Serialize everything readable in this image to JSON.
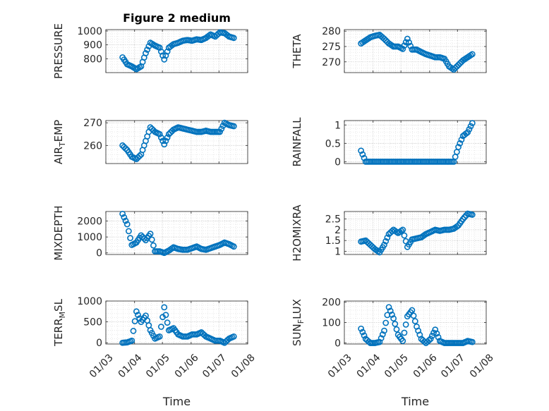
{
  "colors": {
    "marker": "#0072BD",
    "axis": "#262626",
    "grid": "#dcdcdc",
    "background": "#ffffff"
  },
  "chart_data": [
    {
      "type": "scatter",
      "title": "Figure 2 medium",
      "ylabel": "PRESSURE",
      "xlabel": "",
      "xlim": [
        "01/03",
        "01/08"
      ],
      "ylim": [
        700,
        1010
      ],
      "yticks": [
        800,
        900,
        1000
      ],
      "ytick_labels": [
        "800",
        "900",
        "1000"
      ],
      "xticks": [
        "01/03",
        "01/04",
        "01/05",
        "01/06",
        "01/07",
        "01/08"
      ],
      "xtick_labels": [],
      "grid": true,
      "minor_grid": true,
      "x": [
        "2012-03-19",
        "2012-03-24",
        "2012-03-29",
        "2012-04-03",
        "2012-04-08",
        "2012-04-13",
        "2012-04-18",
        "2012-04-23",
        "2012-04-28",
        "2012-05-03",
        "2012-05-08",
        "2012-05-13",
        "2012-05-18",
        "2012-05-23",
        "2012-05-28",
        "2012-06-02",
        "2012-06-07",
        "2012-06-12",
        "2012-06-17",
        "2012-06-22",
        "2012-06-27",
        "2012-07-02",
        "2012-07-07",
        "2012-07-12",
        "2012-07-17"
      ],
      "y": [
        810,
        760,
        745,
        725,
        745,
        840,
        915,
        895,
        880,
        795,
        880,
        905,
        915,
        930,
        935,
        930,
        940,
        935,
        950,
        975,
        960,
        990,
        985,
        960,
        950
      ]
    },
    {
      "type": "scatter",
      "title": "",
      "ylabel": "THETA",
      "xlabel": "",
      "xlim": [
        "01/03",
        "01/08"
      ],
      "ylim": [
        266.5,
        280.5
      ],
      "yticks": [
        270,
        275,
        280
      ],
      "ytick_labels": [
        "270",
        "275",
        "280"
      ],
      "xticks": [
        "01/03",
        "01/04",
        "01/05",
        "01/06",
        "01/07",
        "01/08"
      ],
      "xtick_labels": [],
      "grid": true,
      "minor_grid": true,
      "x": [
        "2012-03-19",
        "2012-03-24",
        "2012-03-29",
        "2012-04-03",
        "2012-04-08",
        "2012-04-13",
        "2012-04-18",
        "2012-04-23",
        "2012-04-28",
        "2012-05-03",
        "2012-05-08",
        "2012-05-13",
        "2012-05-18",
        "2012-05-23",
        "2012-05-28",
        "2012-06-02",
        "2012-06-07",
        "2012-06-12",
        "2012-06-17",
        "2012-06-22",
        "2012-06-27",
        "2012-07-02",
        "2012-07-07",
        "2012-07-12",
        "2012-07-17"
      ],
      "y": [
        276,
        277,
        278,
        278.5,
        278.8,
        277.5,
        276,
        275,
        275,
        274.2,
        277.5,
        274,
        274,
        273.2,
        272.5,
        272,
        271.5,
        271.5,
        271,
        268.5,
        267.5,
        269,
        270.5,
        271.5,
        272.5
      ]
    },
    {
      "type": "scatter",
      "title": "",
      "ylabel": "AIR_TEMP",
      "xlabel": "",
      "xlim": [
        "01/03",
        "01/08"
      ],
      "ylim": [
        252,
        271
      ],
      "yticks": [
        260,
        270
      ],
      "ytick_labels": [
        "260",
        "270"
      ],
      "xticks": [
        "01/03",
        "01/04",
        "01/05",
        "01/06",
        "01/07",
        "01/08"
      ],
      "xtick_labels": [],
      "grid": true,
      "minor_grid": true,
      "x": [
        "2012-03-19",
        "2012-03-24",
        "2012-03-29",
        "2012-04-03",
        "2012-04-08",
        "2012-04-13",
        "2012-04-18",
        "2012-04-23",
        "2012-04-28",
        "2012-05-03",
        "2012-05-08",
        "2012-05-13",
        "2012-05-18",
        "2012-05-23",
        "2012-05-28",
        "2012-06-02",
        "2012-06-07",
        "2012-06-12",
        "2012-06-17",
        "2012-06-22",
        "2012-06-27",
        "2012-07-02",
        "2012-07-07",
        "2012-07-12",
        "2012-07-17"
      ],
      "y": [
        260,
        258,
        255,
        254,
        256,
        262,
        268,
        266,
        265,
        260.5,
        265,
        267,
        268,
        267.5,
        267,
        266.5,
        266,
        266,
        266.5,
        266,
        266,
        266,
        270,
        269,
        268.5
      ]
    },
    {
      "type": "scatter",
      "title": "",
      "ylabel": "RAINFALL",
      "xlabel": "",
      "xlim": [
        "01/03",
        "01/08"
      ],
      "ylim": [
        -0.05,
        1.12
      ],
      "yticks": [
        0,
        0.5,
        1
      ],
      "ytick_labels": [
        "0",
        "0.5",
        "1"
      ],
      "xticks": [
        "01/03",
        "01/04",
        "01/05",
        "01/06",
        "01/07",
        "01/08"
      ],
      "xtick_labels": [],
      "grid": true,
      "minor_grid": true,
      "x": [
        "2012-03-19",
        "2012-03-24",
        "2012-03-29",
        "2012-04-03",
        "2012-04-08",
        "2012-04-13",
        "2012-04-18",
        "2012-04-23",
        "2012-04-28",
        "2012-05-03",
        "2012-05-08",
        "2012-05-13",
        "2012-05-18",
        "2012-05-23",
        "2012-05-28",
        "2012-06-02",
        "2012-06-07",
        "2012-06-12",
        "2012-06-17",
        "2012-06-22",
        "2012-06-27",
        "2012-07-02",
        "2012-07-07",
        "2012-07-12",
        "2012-07-17"
      ],
      "y": [
        0.3,
        0,
        0,
        0,
        0,
        0,
        0,
        0,
        0,
        0,
        0,
        0,
        0,
        0,
        0,
        0,
        0,
        0,
        0,
        0,
        0,
        0.4,
        0.7,
        0.8,
        1.05
      ]
    },
    {
      "type": "scatter",
      "title": "",
      "ylabel": "MIXDEPTH",
      "xlabel": "",
      "xlim": [
        "01/03",
        "01/08"
      ],
      "ylim": [
        -100,
        2600
      ],
      "yticks": [
        0,
        1000,
        2000
      ],
      "ytick_labels": [
        "0",
        "1000",
        "2000"
      ],
      "xticks": [
        "01/03",
        "01/04",
        "01/05",
        "01/06",
        "01/07",
        "01/08"
      ],
      "xtick_labels": [],
      "grid": true,
      "minor_grid": true,
      "x": [
        "2012-03-19",
        "2012-03-24",
        "2012-03-29",
        "2012-04-03",
        "2012-04-08",
        "2012-04-13",
        "2012-04-18",
        "2012-04-23",
        "2012-04-28",
        "2012-05-03",
        "2012-05-08",
        "2012-05-13",
        "2012-05-18",
        "2012-05-23",
        "2012-05-28",
        "2012-06-02",
        "2012-06-07",
        "2012-06-12",
        "2012-06-17",
        "2012-06-22",
        "2012-06-27",
        "2012-07-02",
        "2012-07-07",
        "2012-07-12",
        "2012-07-17"
      ],
      "y": [
        2450,
        1800,
        500,
        650,
        1100,
        800,
        1200,
        100,
        100,
        0,
        150,
        350,
        250,
        200,
        200,
        300,
        400,
        250,
        200,
        300,
        400,
        500,
        650,
        550,
        400
      ]
    },
    {
      "type": "scatter",
      "title": "",
      "ylabel": "H2OMIXRA",
      "xlabel": "",
      "xlim": [
        "01/03",
        "01/08"
      ],
      "ylim": [
        0.85,
        2.85
      ],
      "yticks": [
        1,
        1.5,
        2,
        2.5
      ],
      "ytick_labels": [
        "1",
        "1.5",
        "2",
        "2.5"
      ],
      "xticks": [
        "01/03",
        "01/04",
        "01/05",
        "01/06",
        "01/07",
        "01/08"
      ],
      "xtick_labels": [],
      "grid": true,
      "minor_grid": true,
      "x": [
        "2012-03-19",
        "2012-03-24",
        "2012-03-29",
        "2012-04-03",
        "2012-04-08",
        "2012-04-13",
        "2012-04-18",
        "2012-04-23",
        "2012-04-28",
        "2012-05-03",
        "2012-05-08",
        "2012-05-13",
        "2012-05-18",
        "2012-05-23",
        "2012-05-28",
        "2012-06-02",
        "2012-06-07",
        "2012-06-12",
        "2012-06-17",
        "2012-06-22",
        "2012-06-27",
        "2012-07-02",
        "2012-07-07",
        "2012-07-12",
        "2012-07-17"
      ],
      "y": [
        1.45,
        1.5,
        1.3,
        1.1,
        0.95,
        1.3,
        1.8,
        2.0,
        1.85,
        2.0,
        1.2,
        1.55,
        1.6,
        1.65,
        1.8,
        1.9,
        2.0,
        1.95,
        2.0,
        2.0,
        2.05,
        2.2,
        2.5,
        2.75,
        2.7
      ]
    },
    {
      "type": "scatter",
      "title": "",
      "ylabel": "TERR_MSL",
      "xlabel": "Time",
      "xlim": [
        "01/03",
        "01/08"
      ],
      "ylim": [
        -30,
        1000
      ],
      "yticks": [
        0,
        500,
        1000
      ],
      "ytick_labels": [
        "0",
        "500",
        "1000"
      ],
      "xticks": [
        "01/03",
        "01/04",
        "01/05",
        "01/06",
        "01/07",
        "01/08"
      ],
      "xtick_labels": [
        "01/03",
        "01/04",
        "01/05",
        "01/06",
        "01/07",
        "01/08"
      ],
      "grid": true,
      "minor_grid": true,
      "x": [
        "2012-03-19",
        "2012-03-24",
        "2012-03-29",
        "2012-04-03",
        "2012-04-08",
        "2012-04-13",
        "2012-04-18",
        "2012-04-23",
        "2012-04-28",
        "2012-05-03",
        "2012-05-08",
        "2012-05-13",
        "2012-05-18",
        "2012-05-23",
        "2012-05-28",
        "2012-06-02",
        "2012-06-07",
        "2012-06-12",
        "2012-06-17",
        "2012-06-22",
        "2012-06-27",
        "2012-07-02",
        "2012-07-07",
        "2012-07-12",
        "2012-07-17"
      ],
      "y": [
        0,
        10,
        50,
        750,
        500,
        650,
        300,
        100,
        150,
        850,
        300,
        350,
        200,
        150,
        150,
        200,
        200,
        250,
        150,
        100,
        50,
        50,
        0,
        100,
        150
      ]
    },
    {
      "type": "scatter",
      "title": "",
      "ylabel": "SUN_FLUX",
      "xlabel": "Time",
      "xlim": [
        "01/03",
        "01/08"
      ],
      "ylim": [
        -5,
        205
      ],
      "yticks": [
        0,
        100,
        200
      ],
      "ytick_labels": [
        "0",
        "100",
        "200"
      ],
      "xticks": [
        "01/03",
        "01/04",
        "01/05",
        "01/06",
        "01/07",
        "01/08"
      ],
      "xtick_labels": [
        "01/03",
        "01/04",
        "01/05",
        "01/06",
        "01/07",
        "01/08"
      ],
      "grid": true,
      "minor_grid": true,
      "x": [
        "2012-03-19",
        "2012-03-24",
        "2012-03-29",
        "2012-04-03",
        "2012-04-08",
        "2012-04-13",
        "2012-04-18",
        "2012-04-23",
        "2012-04-28",
        "2012-05-03",
        "2012-05-08",
        "2012-05-13",
        "2012-05-18",
        "2012-05-23",
        "2012-05-28",
        "2012-06-02",
        "2012-06-07",
        "2012-06-12",
        "2012-06-17",
        "2012-06-22",
        "2012-06-27",
        "2012-07-02",
        "2012-07-07",
        "2012-07-12",
        "2012-07-17"
      ],
      "y": [
        70,
        20,
        0,
        0,
        5,
        60,
        175,
        120,
        40,
        10,
        130,
        160,
        80,
        20,
        0,
        20,
        65,
        10,
        0,
        0,
        0,
        0,
        0,
        10,
        5
      ]
    }
  ]
}
